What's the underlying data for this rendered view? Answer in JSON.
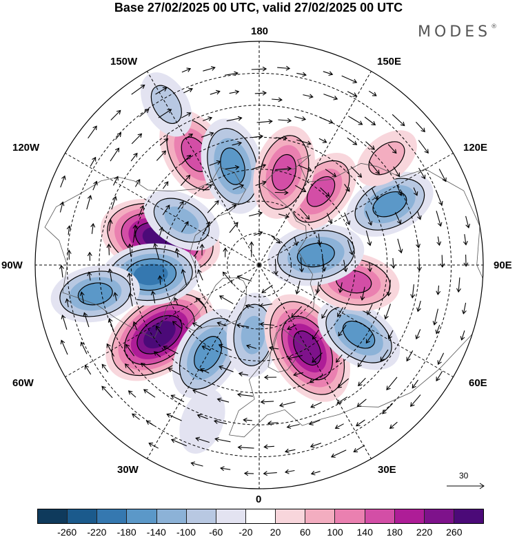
{
  "title": "Base 27/02/2025 00 UTC, valid 27/02/2025 00 UTC",
  "brand": "MODES",
  "brand_mark": "®",
  "longitude_labels": {
    "top": "180",
    "top_left": "150W",
    "top_right": "150E",
    "upper_left": "120W",
    "upper_right": "120E",
    "left": "90W",
    "right": "90E",
    "lower_left": "60W",
    "lower_right": "60E",
    "bottom_left": "30W",
    "bottom_right": "30E",
    "bottom": "0"
  },
  "reference_vector": "30",
  "colorbar": {
    "colors": [
      "#0f3a5c",
      "#1b5a8c",
      "#3578b0",
      "#5b98c8",
      "#8cb2d7",
      "#b8c8e2",
      "#e3e3f1",
      "#ffffff",
      "#f8d6dc",
      "#f3adc0",
      "#ea80b0",
      "#d34ea6",
      "#ae1d97",
      "#7e128b",
      "#4b0a78"
    ],
    "ticks": [
      "-260",
      "-220",
      "-180",
      "-140",
      "-100",
      "-60",
      "-20",
      "20",
      "60",
      "100",
      "140",
      "180",
      "220",
      "260"
    ]
  },
  "anomaly_centers": [
    {
      "lon": -105,
      "lat": 58,
      "value": 270
    },
    {
      "lon": -55,
      "lat": 52,
      "value": 265
    },
    {
      "lon": -150,
      "lat": 50,
      "value": 170
    },
    {
      "lon": -165,
      "lat": 58,
      "value": -170
    },
    {
      "lon": -120,
      "lat": 62,
      "value": -110
    },
    {
      "lon": -85,
      "lat": 56,
      "value": -180
    },
    {
      "lon": -80,
      "lat": 38,
      "value": -140
    },
    {
      "lon": -30,
      "lat": 58,
      "value": -170
    },
    {
      "lon": -5,
      "lat": 68,
      "value": -120
    },
    {
      "lon": 30,
      "lat": 60,
      "value": 250
    },
    {
      "lon": 55,
      "lat": 52,
      "value": -150
    },
    {
      "lon": 80,
      "lat": 60,
      "value": 150
    },
    {
      "lon": 100,
      "lat": 72,
      "value": -170
    },
    {
      "lon": 115,
      "lat": 45,
      "value": -150
    },
    {
      "lon": 140,
      "lat": 60,
      "value": 140
    },
    {
      "lon": 165,
      "lat": 60,
      "value": 160
    },
    {
      "lon": 130,
      "lat": 38,
      "value": 60
    },
    {
      "lon": -20,
      "lat": 38,
      "value": -50
    },
    {
      "lon": -150,
      "lat": 32,
      "value": -60
    }
  ]
}
